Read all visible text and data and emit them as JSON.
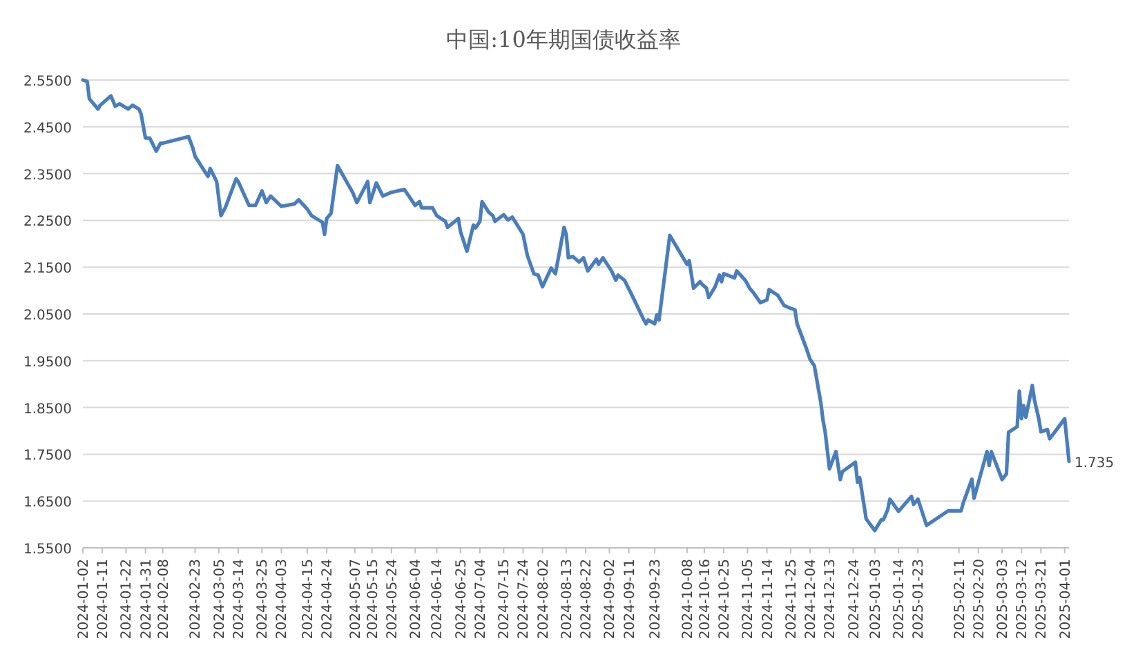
{
  "chart_data": {
    "type": "line",
    "title": "中国:10年期国债收益率",
    "color": "#4a7ebb",
    "grid": "y",
    "marker": "none",
    "line_style": "solid",
    "x": [
      "2024-01-02",
      "2024-01-04",
      "2024-01-05",
      "2024-01-09",
      "2024-01-10",
      "2024-01-15",
      "2024-01-17",
      "2024-01-19",
      "2024-01-23",
      "2024-01-25",
      "2024-01-28",
      "2024-01-29",
      "2024-01-31",
      "2024-02-02",
      "2024-02-05",
      "2024-02-07",
      "2024-02-08",
      "2024-02-20",
      "2024-02-22",
      "2024-02-23",
      "2024-02-27",
      "2024-02-29",
      "2024-03-01",
      "2024-03-04",
      "2024-03-06",
      "2024-03-08",
      "2024-03-13",
      "2024-03-14",
      "2024-03-19",
      "2024-03-22",
      "2024-03-25",
      "2024-03-27",
      "2024-03-29",
      "2024-04-03",
      "2024-04-09",
      "2024-04-11",
      "2024-04-15",
      "2024-04-17",
      "2024-04-22",
      "2024-04-23",
      "2024-04-24",
      "2024-04-26",
      "2024-04-29",
      "2024-05-06",
      "2024-05-08",
      "2024-05-13",
      "2024-05-14",
      "2024-05-17",
      "2024-05-20",
      "2024-05-24",
      "2024-05-30",
      "2024-06-04",
      "2024-06-06",
      "2024-06-07",
      "2024-06-12",
      "2024-06-14",
      "2024-06-18",
      "2024-06-19",
      "2024-06-24",
      "2024-06-25",
      "2024-06-26",
      "2024-06-28",
      "2024-07-01",
      "2024-07-02",
      "2024-07-04",
      "2024-07-05",
      "2024-07-08",
      "2024-07-10",
      "2024-07-11",
      "2024-07-15",
      "2024-07-17",
      "2024-07-19",
      "2024-07-22",
      "2024-07-24",
      "2024-07-26",
      "2024-07-29",
      "2024-07-31",
      "2024-08-02",
      "2024-08-06",
      "2024-08-08",
      "2024-08-12",
      "2024-08-13",
      "2024-08-14",
      "2024-08-16",
      "2024-08-19",
      "2024-08-21",
      "2024-08-23",
      "2024-08-27",
      "2024-08-28",
      "2024-08-30",
      "2024-09-03",
      "2024-09-05",
      "2024-09-06",
      "2024-09-09",
      "2024-09-13",
      "2024-09-18",
      "2024-09-19",
      "2024-09-20",
      "2024-09-23",
      "2024-09-24",
      "2024-09-25",
      "2024-09-30",
      "2024-10-08",
      "2024-10-09",
      "2024-10-11",
      "2024-10-14",
      "2024-10-15",
      "2024-10-17",
      "2024-10-18",
      "2024-10-21",
      "2024-10-23",
      "2024-10-24",
      "2024-10-25",
      "2024-10-30",
      "2024-10-31",
      "2024-11-04",
      "2024-11-06",
      "2024-11-08",
      "2024-11-11",
      "2024-11-14",
      "2024-11-15",
      "2024-11-19",
      "2024-11-22",
      "2024-11-25",
      "2024-11-27",
      "2024-11-28",
      "2024-12-02",
      "2024-12-04",
      "2024-12-06",
      "2024-12-09",
      "2024-12-10",
      "2024-12-11",
      "2024-12-13",
      "2024-12-16",
      "2024-12-18",
      "2024-12-19",
      "2024-12-25",
      "2024-12-26",
      "2024-12-27",
      "2024-12-30",
      "2025-01-03",
      "2025-01-06",
      "2025-01-07",
      "2025-01-09",
      "2025-01-10",
      "2025-01-14",
      "2025-01-20",
      "2025-01-21",
      "2025-01-23",
      "2025-01-27",
      "2025-02-06",
      "2025-02-12",
      "2025-02-13",
      "2025-02-17",
      "2025-02-18",
      "2025-02-24",
      "2025-02-25",
      "2025-02-26",
      "2025-03-03",
      "2025-03-05",
      "2025-03-06",
      "2025-03-10",
      "2025-03-11",
      "2025-03-12",
      "2025-03-13",
      "2025-03-14",
      "2025-03-17",
      "2025-03-18",
      "2025-03-20",
      "2025-03-21",
      "2025-03-24",
      "2025-03-25",
      "2025-03-27",
      "2025-04-01",
      "2025-04-02",
      "2025-04-03"
    ],
    "values": [
      2.55,
      2.547,
      2.51,
      2.488,
      2.496,
      2.516,
      2.494,
      2.499,
      2.488,
      2.496,
      2.488,
      2.477,
      2.426,
      2.426,
      2.398,
      2.415,
      2.415,
      2.429,
      2.404,
      2.387,
      2.358,
      2.344,
      2.361,
      2.333,
      2.26,
      2.277,
      2.339,
      2.333,
      2.282,
      2.282,
      2.313,
      2.288,
      2.302,
      2.28,
      2.285,
      2.294,
      2.274,
      2.26,
      2.246,
      2.22,
      2.254,
      2.265,
      2.367,
      2.31,
      2.288,
      2.333,
      2.288,
      2.33,
      2.302,
      2.31,
      2.316,
      2.282,
      2.29,
      2.277,
      2.277,
      2.26,
      2.248,
      2.235,
      2.254,
      2.226,
      2.212,
      2.184,
      2.24,
      2.234,
      2.248,
      2.29,
      2.268,
      2.26,
      2.248,
      2.262,
      2.251,
      2.257,
      2.235,
      2.22,
      2.175,
      2.136,
      2.133,
      2.108,
      2.148,
      2.136,
      2.235,
      2.22,
      2.17,
      2.173,
      2.161,
      2.17,
      2.142,
      2.167,
      2.156,
      2.17,
      2.142,
      2.122,
      2.133,
      2.122,
      2.085,
      2.037,
      2.029,
      2.037,
      2.029,
      2.048,
      2.037,
      2.218,
      2.156,
      2.164,
      2.105,
      2.119,
      2.113,
      2.105,
      2.085,
      2.108,
      2.133,
      2.119,
      2.136,
      2.127,
      2.142,
      2.122,
      2.105,
      2.094,
      2.074,
      2.08,
      2.102,
      2.09,
      2.068,
      2.062,
      2.059,
      2.029,
      1.98,
      1.953,
      1.939,
      1.86,
      1.823,
      1.798,
      1.719,
      1.756,
      1.696,
      1.713,
      1.733,
      1.69,
      1.7,
      1.612,
      1.587,
      1.61,
      1.61,
      1.632,
      1.654,
      1.628,
      1.66,
      1.643,
      1.654,
      1.598,
      1.629,
      1.629,
      1.646,
      1.697,
      1.656,
      1.756,
      1.726,
      1.756,
      1.696,
      1.708,
      1.797,
      1.809,
      1.885,
      1.826,
      1.854,
      1.829,
      1.897,
      1.866,
      1.826,
      1.798,
      1.803,
      1.783,
      1.795,
      1.826,
      1.781,
      1.735
    ],
    "xlim": [
      "2024-01-02",
      "2025-04-03"
    ],
    "xticks": [
      {
        "value": "2024-01-02",
        "label": "2024-01-02"
      },
      {
        "value": "2024-01-11",
        "label": "2024-01-11"
      },
      {
        "value": "2024-01-22",
        "label": "2024-01-22"
      },
      {
        "value": "2024-01-31",
        "label": "2024-01-31"
      },
      {
        "value": "2024-02-08",
        "label": "2024-02-08"
      },
      {
        "value": "2024-02-23",
        "label": "2024-02-23"
      },
      {
        "value": "2024-03-05",
        "label": "2024-03-05"
      },
      {
        "value": "2024-03-14",
        "label": "2024-03-14"
      },
      {
        "value": "2024-03-25",
        "label": "2024-03-25"
      },
      {
        "value": "2024-04-03",
        "label": "2024-04-03"
      },
      {
        "value": "2024-04-15",
        "label": "2024-04-15"
      },
      {
        "value": "2024-04-24",
        "label": "2024-04-24"
      },
      {
        "value": "2024-05-07",
        "label": "2024-05-07"
      },
      {
        "value": "2024-05-15",
        "label": "2024-05-15"
      },
      {
        "value": "2024-05-24",
        "label": "2024-05-24"
      },
      {
        "value": "2024-06-04",
        "label": "2024-06-04"
      },
      {
        "value": "2024-06-14",
        "label": "2024-06-14"
      },
      {
        "value": "2024-06-25",
        "label": "2024-06-25"
      },
      {
        "value": "2024-07-04",
        "label": "2024-07-04"
      },
      {
        "value": "2024-07-15",
        "label": "2024-07-15"
      },
      {
        "value": "2024-07-24",
        "label": "2024-07-24"
      },
      {
        "value": "2024-08-02",
        "label": "2024-08-02"
      },
      {
        "value": "2024-08-13",
        "label": "2024-08-13"
      },
      {
        "value": "2024-08-22",
        "label": "2024-08-22"
      },
      {
        "value": "2024-09-02",
        "label": "2024-09-02"
      },
      {
        "value": "2024-09-11",
        "label": "2024-09-11"
      },
      {
        "value": "2024-09-23",
        "label": "2024-09-23"
      },
      {
        "value": "2024-10-08",
        "label": "2024-10-08"
      },
      {
        "value": "2024-10-16",
        "label": "2024-10-16"
      },
      {
        "value": "2024-10-25",
        "label": "2024-10-25"
      },
      {
        "value": "2024-11-05",
        "label": "2024-11-05"
      },
      {
        "value": "2024-11-14",
        "label": "2024-11-14"
      },
      {
        "value": "2024-11-25",
        "label": "2024-11-25"
      },
      {
        "value": "2024-12-04",
        "label": "2024-12-04"
      },
      {
        "value": "2024-12-13",
        "label": "2024-12-13"
      },
      {
        "value": "2024-12-24",
        "label": "2024-12-24"
      },
      {
        "value": "2025-01-03",
        "label": "2025-01-03"
      },
      {
        "value": "2025-01-14",
        "label": "2025-01-14"
      },
      {
        "value": "2025-01-23",
        "label": "2025-01-23"
      },
      {
        "value": "2025-02-11",
        "label": "2025-02-11"
      },
      {
        "value": "2025-02-20",
        "label": "2025-02-20"
      },
      {
        "value": "2025-03-03",
        "label": "2025-03-03"
      },
      {
        "value": "2025-03-12",
        "label": "2025-03-12"
      },
      {
        "value": "2025-03-21",
        "label": "2025-03-21"
      },
      {
        "value": "2025-04-01",
        "label": "2025-04-01"
      }
    ],
    "ylim": [
      1.55,
      2.55
    ],
    "yticks": [
      {
        "value": 1.55,
        "label": "1.5500"
      },
      {
        "value": 1.65,
        "label": "1.6500"
      },
      {
        "value": 1.75,
        "label": "1.7500"
      },
      {
        "value": 1.85,
        "label": "1.8500"
      },
      {
        "value": 1.95,
        "label": "1.9500"
      },
      {
        "value": 2.05,
        "label": "2.0500"
      },
      {
        "value": 2.15,
        "label": "2.1500"
      },
      {
        "value": 2.25,
        "label": "2.2500"
      },
      {
        "value": 2.35,
        "label": "2.3500"
      },
      {
        "value": 2.45,
        "label": "2.4500"
      },
      {
        "value": 2.55,
        "label": "2.5500"
      }
    ],
    "annotations": [
      {
        "text": "1.735",
        "x": "2025-04-03",
        "y": 1.735
      }
    ]
  }
}
